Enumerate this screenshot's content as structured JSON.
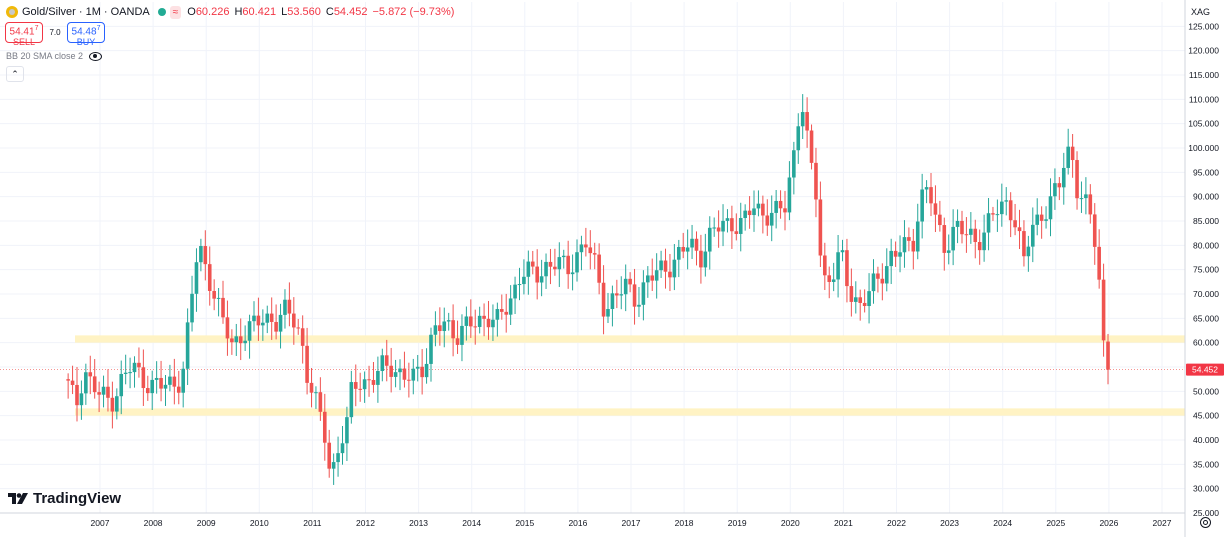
{
  "header": {
    "symbol": "Gold/Silver · 1M · OANDA",
    "approx": "≈",
    "o_key": "O",
    "o": "60.226",
    "h_key": "H",
    "h": "60.421",
    "l_key": "L",
    "l": "53.560",
    "c_key": "C",
    "c": "54.452",
    "change": "−5.872 (−9.73%)"
  },
  "trade": {
    "sell_price_main": "54.41",
    "sell_price_sup": "7",
    "sell_label": "SELL",
    "spread": "7.0",
    "buy_price_main": "54.48",
    "buy_price_sup": "7",
    "buy_label": "BUY"
  },
  "indicator": {
    "label": "BB 20 SMA close 2"
  },
  "currency": "XAG",
  "brand": "TradingView",
  "chart_data": {
    "type": "candlestick",
    "ylim": [
      25,
      130
    ],
    "y_ticks": [
      "25.000",
      "30.000",
      "35.000",
      "40.000",
      "45.000",
      "50.000",
      "55.000",
      "60.000",
      "65.000",
      "70.000",
      "75.000",
      "80.000",
      "85.000",
      "90.000",
      "95.000",
      "100.000",
      "105.000",
      "110.000",
      "115.000",
      "120.000",
      "125.000"
    ],
    "x_ticks": [
      "2007",
      "2008",
      "2009",
      "2010",
      "2011",
      "2012",
      "2013",
      "2014",
      "2015",
      "2016",
      "2017",
      "2018",
      "2019",
      "2020",
      "2021",
      "2022",
      "2023",
      "2024",
      "2025",
      "2026",
      "2027"
    ],
    "last_value": 54.452,
    "support_zones": [
      [
        60.0,
        61.5
      ],
      [
        45.0,
        46.5
      ]
    ],
    "colors": {
      "up": "#26a69a",
      "down": "#ef5350",
      "zone": "#fff3c4"
    },
    "anchors": [
      [
        2006.4,
        51
      ],
      [
        2006.55,
        47
      ],
      [
        2006.7,
        55
      ],
      [
        2006.85,
        51
      ],
      [
        2007.0,
        49
      ],
      [
        2007.2,
        48
      ],
      [
        2007.4,
        52
      ],
      [
        2007.6,
        55
      ],
      [
        2007.8,
        53
      ],
      [
        2008.0,
        51
      ],
      [
        2008.2,
        51
      ],
      [
        2008.4,
        52
      ],
      [
        2008.55,
        53
      ],
      [
        2008.7,
        66
      ],
      [
        2008.8,
        77
      ],
      [
        2008.9,
        79
      ],
      [
        2009.1,
        72
      ],
      [
        2009.3,
        64
      ],
      [
        2009.5,
        60
      ],
      [
        2009.7,
        62
      ],
      [
        2009.9,
        63
      ],
      [
        2010.1,
        66
      ],
      [
        2010.3,
        64
      ],
      [
        2010.5,
        66
      ],
      [
        2010.7,
        65
      ],
      [
        2010.8,
        60
      ],
      [
        2010.9,
        53
      ],
      [
        2011.1,
        46
      ],
      [
        2011.25,
        41
      ],
      [
        2011.35,
        33
      ],
      [
        2011.5,
        38
      ],
      [
        2011.65,
        43
      ],
      [
        2011.75,
        51
      ],
      [
        2011.9,
        53
      ],
      [
        2012.1,
        51
      ],
      [
        2012.3,
        55
      ],
      [
        2012.5,
        56
      ],
      [
        2012.7,
        52
      ],
      [
        2012.9,
        53
      ],
      [
        2013.1,
        56
      ],
      [
        2013.3,
        62
      ],
      [
        2013.5,
        64
      ],
      [
        2013.7,
        62
      ],
      [
        2013.9,
        63
      ],
      [
        2014.1,
        64
      ],
      [
        2014.3,
        66
      ],
      [
        2014.5,
        64
      ],
      [
        2014.7,
        68
      ],
      [
        2014.9,
        74
      ],
      [
        2015.0,
        75
      ],
      [
        2015.2,
        73
      ],
      [
        2015.4,
        76
      ],
      [
        2015.6,
        77
      ],
      [
        2015.8,
        74
      ],
      [
        2016.0,
        79
      ],
      [
        2016.15,
        81
      ],
      [
        2016.3,
        76
      ],
      [
        2016.5,
        67
      ],
      [
        2016.7,
        70
      ],
      [
        2016.9,
        71
      ],
      [
        2017.1,
        69
      ],
      [
        2017.3,
        73
      ],
      [
        2017.5,
        74
      ],
      [
        2017.7,
        76
      ],
      [
        2017.9,
        78
      ],
      [
        2018.1,
        80
      ],
      [
        2018.3,
        78
      ],
      [
        2018.5,
        82
      ],
      [
        2018.7,
        84
      ],
      [
        2018.9,
        85
      ],
      [
        2019.1,
        84
      ],
      [
        2019.3,
        88
      ],
      [
        2019.5,
        87
      ],
      [
        2019.7,
        86
      ],
      [
        2019.9,
        88
      ],
      [
        2020.05,
        98
      ],
      [
        2020.2,
        111
      ],
      [
        2020.35,
        98
      ],
      [
        2020.5,
        90
      ],
      [
        2020.6,
        73
      ],
      [
        2020.8,
        74
      ],
      [
        2020.95,
        78
      ],
      [
        2021.1,
        71
      ],
      [
        2021.3,
        68
      ],
      [
        2021.5,
        70
      ],
      [
        2021.7,
        74
      ],
      [
        2021.9,
        78
      ],
      [
        2022.1,
        79
      ],
      [
        2022.3,
        80
      ],
      [
        2022.45,
        90
      ],
      [
        2022.6,
        92
      ],
      [
        2022.75,
        84
      ],
      [
        2022.9,
        80
      ],
      [
        2023.1,
        84
      ],
      [
        2023.3,
        82
      ],
      [
        2023.5,
        81
      ],
      [
        2023.7,
        84
      ],
      [
        2023.9,
        87
      ],
      [
        2024.1,
        89
      ],
      [
        2024.25,
        85
      ],
      [
        2024.4,
        76
      ],
      [
        2024.55,
        84
      ],
      [
        2024.7,
        86
      ],
      [
        2024.9,
        89
      ],
      [
        2025.05,
        91
      ],
      [
        2025.2,
        100
      ],
      [
        2025.3,
        99
      ],
      [
        2025.4,
        92
      ],
      [
        2025.55,
        88
      ],
      [
        2025.7,
        84
      ],
      [
        2025.8,
        76
      ],
      [
        2025.9,
        60
      ],
      [
        2025.98,
        54.452
      ]
    ]
  }
}
